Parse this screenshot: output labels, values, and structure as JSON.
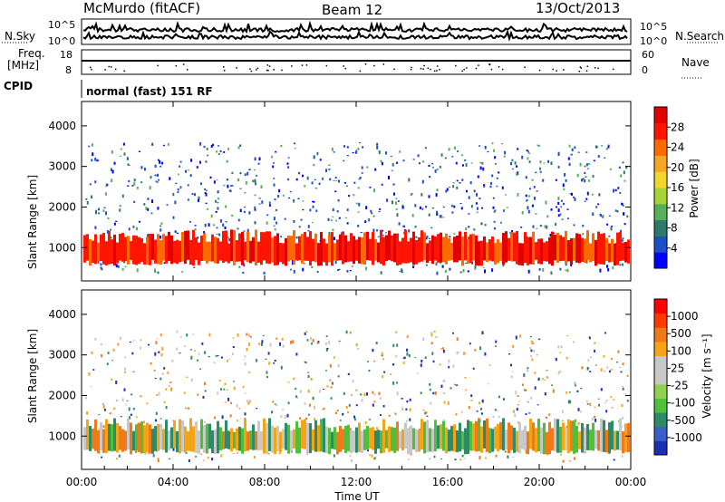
{
  "header": {
    "station": "McMurdo (fitACF)",
    "beam": "Beam 12",
    "date": "13/Oct/2013"
  },
  "param_panels": {
    "left_nsky": "N.Sky",
    "right_nsearch": "N.Search",
    "noise_ticks_left": [
      "10^5",
      "10^0"
    ],
    "noise_ticks_right": [
      "10^5",
      "10^0"
    ],
    "freq_label": "Freq.",
    "freq_unit": "[MHz]",
    "freq_ticks": [
      "18",
      "8"
    ],
    "nave_label": "Nave",
    "nave_ticks": [
      "60",
      "0"
    ],
    "cpid_label": "CPID",
    "cpid_value": "normal (fast) 151 RF"
  },
  "chart_data": [
    {
      "type": "heatmap",
      "name": "power",
      "ylabel": "Slant Range [km]",
      "ylim": [
        180,
        4600
      ],
      "yticks": [
        "1000",
        "2000",
        "3000",
        "4000"
      ],
      "ytick_values": [
        1000,
        2000,
        3000,
        4000
      ],
      "colorbar_label": "Power [dB]",
      "colorbar_ticks": [
        "28",
        "24",
        "20",
        "16",
        "12",
        "8",
        "4"
      ],
      "colorbar_colors": [
        "#0000ff",
        "#1f4fc8",
        "#2f7a6a",
        "#56b05a",
        "#a7d437",
        "#f2d62a",
        "#f5a623",
        "#ff6a00",
        "#ff1500",
        "#e00000"
      ]
    },
    {
      "type": "heatmap",
      "name": "velocity",
      "ylabel": "Slant Range [km]",
      "ylim": [
        180,
        4600
      ],
      "yticks": [
        "1000",
        "2000",
        "3000",
        "4000"
      ],
      "ytick_values": [
        1000,
        2000,
        3000,
        4000
      ],
      "colorbar_label": "Velocity [m s⁻¹]",
      "colorbar_ticks": [
        "1000",
        "500",
        "100",
        "25",
        "-25",
        "-100",
        "-500",
        "-1000"
      ],
      "colorbar_colors": [
        "#1c2fb4",
        "#3a5fc8",
        "#2e8b6a",
        "#4fbf3c",
        "#8fd24f",
        "#c8c8c8",
        "#c8c8c8",
        "#f4a417",
        "#f07a1a",
        "#ff3a00",
        "#ff0000"
      ],
      "xlabel": "Time UT",
      "xticks": [
        "00:00",
        "04:00",
        "08:00",
        "12:00",
        "16:00",
        "20:00",
        "00:00"
      ],
      "xlim_hours": [
        0,
        24
      ]
    }
  ]
}
